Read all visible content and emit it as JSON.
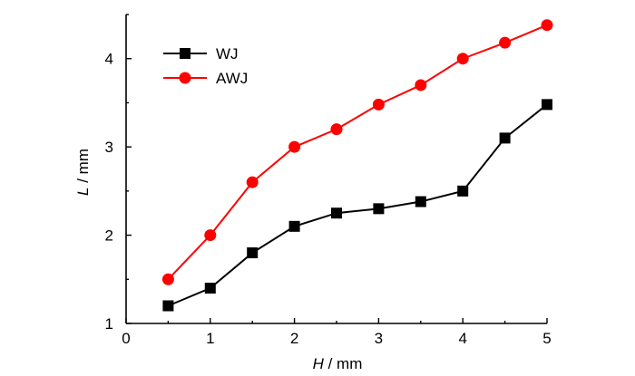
{
  "chart_data": {
    "type": "line",
    "xlabel": {
      "symbol": "H",
      "unit": " / mm"
    },
    "ylabel": {
      "symbol": "L",
      "unit": " / mm"
    },
    "xlim": [
      0,
      5
    ],
    "ylim": [
      1,
      4.5
    ],
    "xticks": [
      "0",
      "1",
      "2",
      "3",
      "4",
      "5"
    ],
    "yticks": [
      "1",
      "2",
      "3",
      "4"
    ],
    "grid": false,
    "legend_position": "top-left",
    "series": [
      {
        "name": "WJ",
        "color": "#000000",
        "marker": "square",
        "x": [
          0.5,
          1.0,
          1.5,
          2.0,
          2.5,
          3.0,
          3.5,
          4.0,
          4.5,
          5.0
        ],
        "y": [
          1.2,
          1.4,
          1.8,
          2.1,
          2.25,
          2.3,
          2.38,
          2.5,
          3.1,
          3.48
        ]
      },
      {
        "name": "AWJ",
        "color": "#ff0000",
        "marker": "circle",
        "x": [
          0.5,
          1.0,
          1.5,
          2.0,
          2.5,
          3.0,
          3.5,
          4.0,
          4.5,
          5.0
        ],
        "y": [
          1.5,
          2.0,
          2.6,
          3.0,
          3.2,
          3.48,
          3.7,
          4.0,
          4.18,
          4.38
        ]
      }
    ]
  }
}
